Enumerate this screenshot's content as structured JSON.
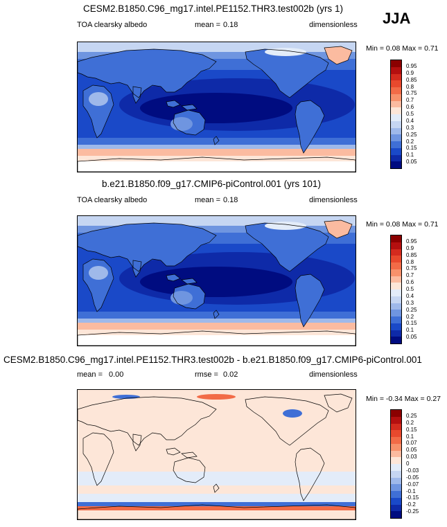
{
  "season": "JJA",
  "panels": [
    {
      "title": "CESM2.B1850.C96_mg17.intel.PE1152.THR3.test002b (yrs 1)",
      "variable": "TOA clearsky albedo",
      "stat_label": "mean =",
      "stat_value": "0.18",
      "units": "dimensionless",
      "min_label": "Min =",
      "min_value": "0.08",
      "max_label": "Max =",
      "max_value": "0.71",
      "colorbar_labels": [
        "0.95",
        "0.9",
        "0.85",
        "0.8",
        "0.75",
        "0.7",
        "0.6",
        "0.5",
        "0.4",
        "0.3",
        "0.25",
        "0.2",
        "0.15",
        "0.1",
        "0.05"
      ],
      "colorbar_colors": [
        "#8b0000",
        "#b40f0f",
        "#d42b1e",
        "#e8492d",
        "#f26b47",
        "#f7916b",
        "#fbbba0",
        "#fde6d8",
        "#e3ecf9",
        "#c6d6f2",
        "#9fb9ea",
        "#6f95e0",
        "#3f6fd6",
        "#1a49c8",
        "#0e2aa8",
        "#000c80"
      ],
      "field_type": "abs"
    },
    {
      "title": "b.e21.B1850.f09_g17.CMIP6-piControl.001 (yrs 101)",
      "variable": "TOA clearsky albedo",
      "stat_label": "mean =",
      "stat_value": "0.18",
      "units": "dimensionless",
      "min_label": "Min =",
      "min_value": "0.08",
      "max_label": "Max =",
      "max_value": "0.71",
      "colorbar_labels": [
        "0.95",
        "0.9",
        "0.85",
        "0.8",
        "0.75",
        "0.7",
        "0.6",
        "0.5",
        "0.4",
        "0.3",
        "0.25",
        "0.2",
        "0.15",
        "0.1",
        "0.05"
      ],
      "colorbar_colors": [
        "#8b0000",
        "#b40f0f",
        "#d42b1e",
        "#e8492d",
        "#f26b47",
        "#f7916b",
        "#fbbba0",
        "#fde6d8",
        "#e3ecf9",
        "#c6d6f2",
        "#9fb9ea",
        "#6f95e0",
        "#3f6fd6",
        "#1a49c8",
        "#0e2aa8",
        "#000c80"
      ],
      "field_type": "abs"
    },
    {
      "title": "CESM2.B1850.C96_mg17.intel.PE1152.THR3.test002b - b.e21.B1850.f09_g17.CMIP6-piControl.001",
      "variable": "",
      "stat_label": "mean =",
      "stat_value": "0.00",
      "rmse_label": "rmse =",
      "rmse_value": "0.02",
      "units": "dimensionless",
      "min_label": "Min =",
      "min_value": "-0.34",
      "max_label": "Max =",
      "max_value": "0.27",
      "colorbar_labels": [
        "0.25",
        "0.2",
        "0.15",
        "0.1",
        "0.07",
        "0.05",
        "0.03",
        "0",
        "-0.03",
        "-0.05",
        "-0.07",
        "-0.1",
        "-0.15",
        "-0.2",
        "-0.25"
      ],
      "colorbar_colors": [
        "#8b0000",
        "#b40f0f",
        "#d42b1e",
        "#e8492d",
        "#f26b47",
        "#f7916b",
        "#fbbba0",
        "#fde6d8",
        "#e3ecf9",
        "#c6d6f2",
        "#9fb9ea",
        "#6f95e0",
        "#3f6fd6",
        "#1a49c8",
        "#0e2aa8",
        "#000c80"
      ],
      "field_type": "diff"
    }
  ]
}
